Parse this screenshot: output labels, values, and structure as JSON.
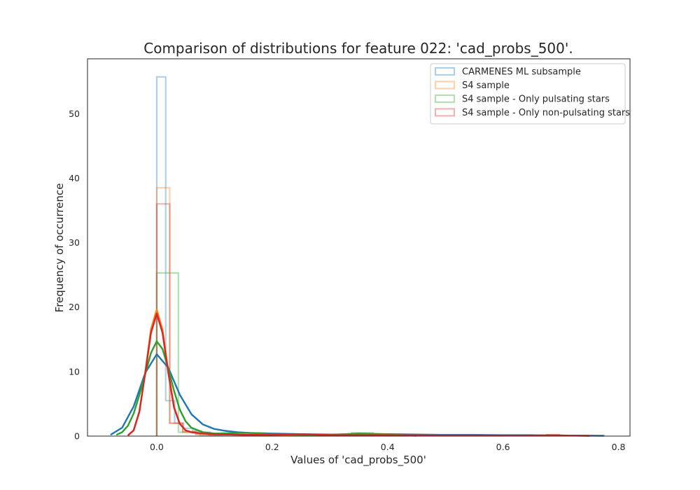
{
  "chart_data": {
    "type": "histogram+kde",
    "title": "Comparison of distributions for feature 022: 'cad_probs_500'.",
    "xlabel": "Values of 'cad_probs_500'",
    "ylabel": "Frequency of occurrence",
    "xlim": [
      -0.12,
      0.82
    ],
    "ylim": [
      0,
      58.5
    ],
    "xticks": [
      0.0,
      0.2,
      0.4,
      0.6,
      0.8
    ],
    "xtick_labels": [
      "0.0",
      "0.2",
      "0.4",
      "0.6",
      "0.8"
    ],
    "yticks": [
      0,
      10,
      20,
      30,
      40,
      50
    ],
    "ytick_labels": [
      "0",
      "10",
      "20",
      "30",
      "40",
      "50"
    ],
    "grid": false,
    "legend_position": "top-right",
    "series": [
      {
        "name": "CARMENES ML subsample",
        "color": "#1f77b4",
        "hist_edges": [
          0.0,
          0.0155,
          0.031,
          0.0465,
          0.062,
          0.0775,
          0.093,
          0.1085,
          0.124,
          0.1395,
          0.155,
          0.1705,
          0.186,
          0.2015,
          0.217,
          0.2325,
          0.248,
          0.2635,
          0.279,
          0.2945,
          0.31,
          0.3255,
          0.341,
          0.3565,
          0.372,
          0.3875,
          0.403,
          0.4185,
          0.434,
          0.4495,
          0.465,
          0.4805,
          0.496,
          0.5115,
          0.527,
          0.5425,
          0.558,
          0.5735,
          0.589,
          0.6045,
          0.62,
          0.6355,
          0.651,
          0.6665,
          0.682,
          0.6975,
          0.713,
          0.7285,
          0.744,
          0.7595,
          0.775
        ],
        "hist_values": [
          55.7,
          5.5,
          2.0,
          1.2,
          0.8,
          0.6,
          0.4,
          0.4,
          0.3,
          0.3,
          0.3,
          0.2,
          0.2,
          0.2,
          0.2,
          0.15,
          0.15,
          0.15,
          0.1,
          0.1,
          0.1,
          0.1,
          0.1,
          0.1,
          0.1,
          0.1,
          0.1,
          0.1,
          0.15,
          0.1,
          0.1,
          0.1,
          0.1,
          0.1,
          0.1,
          0.1,
          0.1,
          0.1,
          0.1,
          0.1,
          0.1,
          0.1,
          0.1,
          0.1,
          0.1,
          0.1,
          0.1,
          0.1,
          0.1,
          0.1
        ],
        "kde_x": [
          -0.08,
          -0.06,
          -0.04,
          -0.02,
          0.0,
          0.02,
          0.04,
          0.06,
          0.08,
          0.1,
          0.12,
          0.14,
          0.16,
          0.2,
          0.25,
          0.3,
          0.35,
          0.4,
          0.45,
          0.5,
          0.55,
          0.6,
          0.65,
          0.7,
          0.775
        ],
        "kde_y": [
          0.2,
          1.3,
          4.6,
          9.8,
          12.7,
          10.6,
          6.4,
          3.4,
          1.8,
          1.1,
          0.8,
          0.6,
          0.5,
          0.4,
          0.3,
          0.25,
          0.3,
          0.3,
          0.25,
          0.2,
          0.2,
          0.15,
          0.15,
          0.1,
          0.05
        ]
      },
      {
        "name": "S4 sample",
        "color": "#ff7f0e",
        "hist_edges": [
          0.0,
          0.0225,
          0.045,
          0.0675,
          0.09,
          0.1125,
          0.135,
          0.1575,
          0.18,
          0.2025,
          0.225,
          0.2475,
          0.27,
          0.2925,
          0.315,
          0.3375,
          0.36,
          0.3825,
          0.405,
          0.4275,
          0.45,
          0.4725,
          0.495,
          0.5175,
          0.54,
          0.5625,
          0.585,
          0.6075,
          0.63,
          0.6525,
          0.675,
          0.6975,
          0.72
        ],
        "hist_values": [
          38.5,
          2.0,
          0.6,
          0.3,
          0.2,
          0.2,
          0.2,
          0.1,
          0.1,
          0.1,
          0.1,
          0.1,
          0.1,
          0.1,
          0.1,
          0.1,
          0.1,
          0.1,
          0.1,
          0.1,
          0.1,
          0.1,
          0.1,
          0.1,
          0.1,
          0.1,
          0.1,
          0.1,
          0.1,
          0.1,
          0.2,
          0.1
        ],
        "kde_x": [
          -0.05,
          -0.04,
          -0.03,
          -0.02,
          -0.01,
          0.0,
          0.01,
          0.02,
          0.03,
          0.04,
          0.05,
          0.06,
          0.08,
          0.1,
          0.15,
          0.2,
          0.3,
          0.4,
          0.5,
          0.6,
          0.7,
          0.75
        ],
        "kde_y": [
          0.1,
          0.9,
          3.9,
          9.9,
          16.6,
          19.6,
          16.5,
          10.0,
          4.5,
          1.9,
          0.9,
          0.6,
          0.4,
          0.3,
          0.2,
          0.2,
          0.15,
          0.15,
          0.1,
          0.1,
          0.1,
          0.05
        ]
      },
      {
        "name": "S4 sample - Only pulsating stars",
        "color": "#2ca02c",
        "hist_edges": [
          0.0,
          0.0375,
          0.075,
          0.1125,
          0.15,
          0.1875,
          0.225,
          0.2625,
          0.3,
          0.3375,
          0.375,
          0.4125
        ],
        "hist_values": [
          25.3,
          0.6,
          0.1,
          0.5,
          0.1,
          0.1,
          0.1,
          0.1,
          0.1,
          0.5,
          0.1
        ],
        "kde_x": [
          -0.07,
          -0.06,
          -0.05,
          -0.04,
          -0.03,
          -0.02,
          -0.01,
          0.0,
          0.01,
          0.02,
          0.03,
          0.04,
          0.05,
          0.06,
          0.08,
          0.1,
          0.12,
          0.14,
          0.16,
          0.2,
          0.25,
          0.3,
          0.35,
          0.4,
          0.45
        ],
        "kde_y": [
          0.2,
          0.6,
          1.6,
          3.5,
          6.4,
          9.6,
          12.9,
          14.7,
          13.5,
          10.5,
          7.0,
          4.1,
          2.3,
          1.3,
          0.6,
          0.4,
          0.4,
          0.5,
          0.5,
          0.3,
          0.2,
          0.2,
          0.4,
          0.3,
          0.05
        ]
      },
      {
        "name": "S4 sample - Only non-pulsating stars",
        "color": "#d62728",
        "hist_edges": [
          0.0,
          0.0225,
          0.045,
          0.0675,
          0.09,
          0.1125,
          0.135,
          0.1575,
          0.18,
          0.2025,
          0.225,
          0.2475,
          0.27,
          0.2925,
          0.315,
          0.3375,
          0.36,
          0.3825,
          0.405,
          0.4275,
          0.45,
          0.4725,
          0.495,
          0.5175,
          0.54,
          0.5625,
          0.585,
          0.6075,
          0.63,
          0.6525,
          0.675,
          0.6975,
          0.72
        ],
        "hist_values": [
          36.0,
          2.0,
          0.7,
          0.3,
          0.2,
          0.2,
          0.2,
          0.1,
          0.1,
          0.1,
          0.2,
          0.2,
          0.1,
          0.1,
          0.1,
          0.1,
          0.1,
          0.1,
          0.1,
          0.1,
          0.1,
          0.1,
          0.1,
          0.1,
          0.1,
          0.1,
          0.1,
          0.1,
          0.1,
          0.1,
          0.2,
          0.1
        ],
        "kde_x": [
          -0.05,
          -0.04,
          -0.03,
          -0.02,
          -0.01,
          0.0,
          0.01,
          0.02,
          0.03,
          0.04,
          0.05,
          0.06,
          0.08,
          0.1,
          0.15,
          0.2,
          0.25,
          0.3,
          0.4,
          0.5,
          0.6,
          0.7,
          0.75
        ],
        "kde_y": [
          0.1,
          0.9,
          3.8,
          9.7,
          16.0,
          19.0,
          16.0,
          9.8,
          4.4,
          1.9,
          0.9,
          0.6,
          0.4,
          0.3,
          0.2,
          0.2,
          0.3,
          0.15,
          0.15,
          0.1,
          0.1,
          0.1,
          0.05
        ]
      }
    ]
  }
}
